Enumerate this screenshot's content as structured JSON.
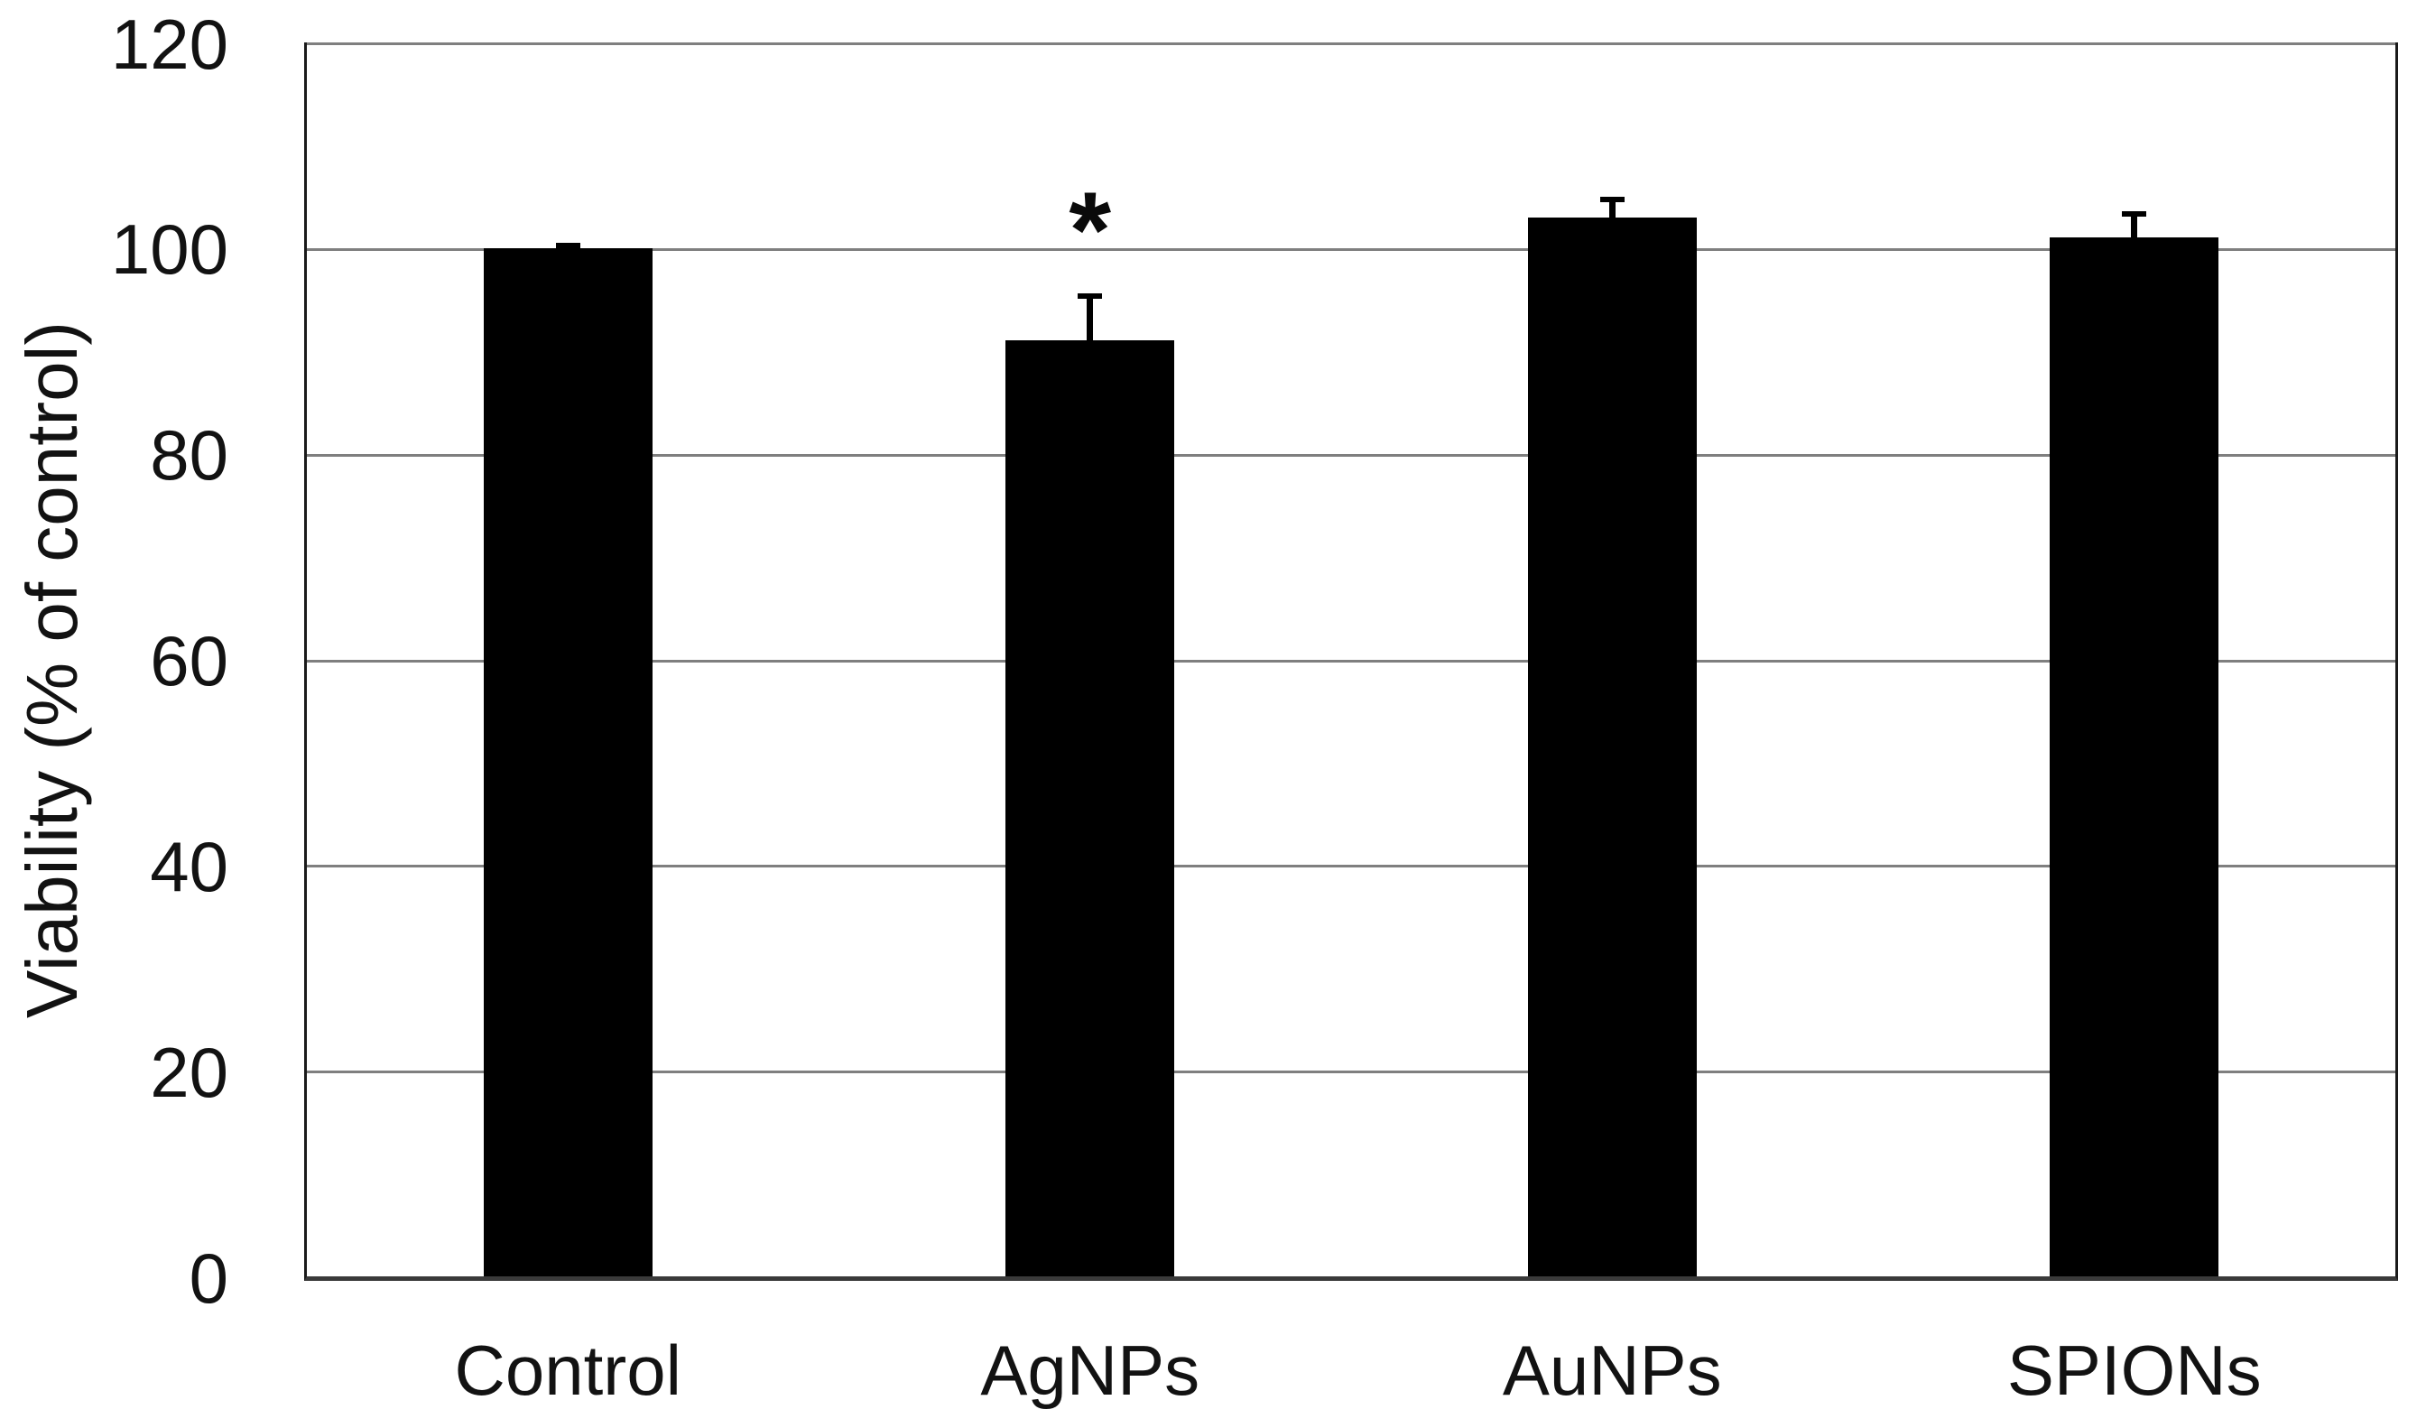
{
  "chart_data": {
    "type": "bar",
    "title": "",
    "ylabel": "Viability (% of control)",
    "xlabel": "",
    "categories": [
      "Control",
      "AgNPs",
      "AuNPs",
      "SPIONs"
    ],
    "values": [
      100,
      91,
      103,
      101
    ],
    "errors_plus": [
      0.5,
      4.6,
      2.0,
      2.6
    ],
    "ylim": [
      0,
      120
    ],
    "yticks": [
      0,
      20,
      40,
      60,
      80,
      100,
      120
    ],
    "grid": "horizontal-gridlines",
    "legend_position": "none",
    "annotations": [
      {
        "text": "*",
        "category": "AgNPs",
        "category_index": 1,
        "y": 107
      }
    ],
    "colors": {
      "bar": "#000000",
      "gridline": "#7f7f7f",
      "axis_side": "#1a1a1a",
      "axis_bottom": "#3a3a3a",
      "text": "#121212",
      "background": "#ffffff"
    }
  }
}
